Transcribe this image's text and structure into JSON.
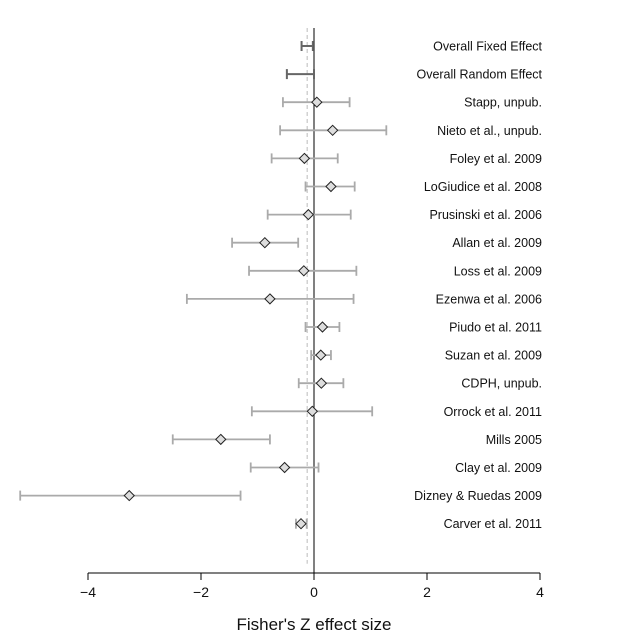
{
  "chart_data": {
    "type": "forest",
    "title": "",
    "xlabel": "Fisher's Z effect size",
    "ylabel": "",
    "xlim": [
      -4.5,
      4.8
    ],
    "ticks": [
      -4,
      -2,
      0,
      2,
      4
    ],
    "tick_labels": [
      "−4",
      "−2",
      "0",
      "2",
      "4"
    ],
    "summary": [
      {
        "name": "Overall Fixed Effect",
        "estimate": -0.12,
        "lower": -0.22,
        "upper": -0.02
      },
      {
        "name": "Overall Random Effect",
        "estimate": -0.25,
        "lower": -0.48,
        "upper": 0.0
      }
    ],
    "studies": [
      {
        "name": "Stapp, unpub.",
        "estimate": 0.05,
        "lower": -0.55,
        "upper": 0.63
      },
      {
        "name": "Nieto et al., unpub.",
        "estimate": 0.33,
        "lower": -0.6,
        "upper": 1.28
      },
      {
        "name": "Foley et al. 2009",
        "estimate": -0.17,
        "lower": -0.75,
        "upper": 0.42
      },
      {
        "name": "LoGiudice et al. 2008",
        "estimate": 0.3,
        "lower": -0.15,
        "upper": 0.72
      },
      {
        "name": "Prusinski et al. 2006",
        "estimate": -0.1,
        "lower": -0.82,
        "upper": 0.65
      },
      {
        "name": "Allan et al. 2009",
        "estimate": -0.87,
        "lower": -1.45,
        "upper": -0.28
      },
      {
        "name": "Loss et al. 2009",
        "estimate": -0.18,
        "lower": -1.15,
        "upper": 0.75
      },
      {
        "name": "Ezenwa et al. 2006",
        "estimate": -0.78,
        "lower": -2.25,
        "upper": 0.7
      },
      {
        "name": "Piudo et al. 2011",
        "estimate": 0.15,
        "lower": -0.15,
        "upper": 0.45
      },
      {
        "name": "Suzan et al. 2009",
        "estimate": 0.12,
        "lower": -0.05,
        "upper": 0.3
      },
      {
        "name": "CDPH, unpub.",
        "estimate": 0.13,
        "lower": -0.27,
        "upper": 0.52
      },
      {
        "name": "Orrock et al. 2011",
        "estimate": -0.03,
        "lower": -1.1,
        "upper": 1.03
      },
      {
        "name": "Mills 2005",
        "estimate": -1.65,
        "lower": -2.5,
        "upper": -0.78
      },
      {
        "name": "Clay et al. 2009",
        "estimate": -0.52,
        "lower": -1.12,
        "upper": 0.08
      },
      {
        "name": "Dizney & Ruedas 2009",
        "estimate": -3.27,
        "lower": -5.2,
        "upper": -1.3
      },
      {
        "name": "Carver et al. 2011",
        "estimate": -0.23,
        "lower": -0.32,
        "upper": -0.13
      }
    ],
    "colors": {
      "ci_line": "#aaaaaa",
      "summary_line": "#666666",
      "marker_fill": "#dddddd",
      "marker_stroke": "#222222",
      "zero_line": "#000000",
      "reference_line": "#cccccc"
    },
    "reference_line_x": -0.12,
    "grid": false,
    "legend": "none"
  }
}
